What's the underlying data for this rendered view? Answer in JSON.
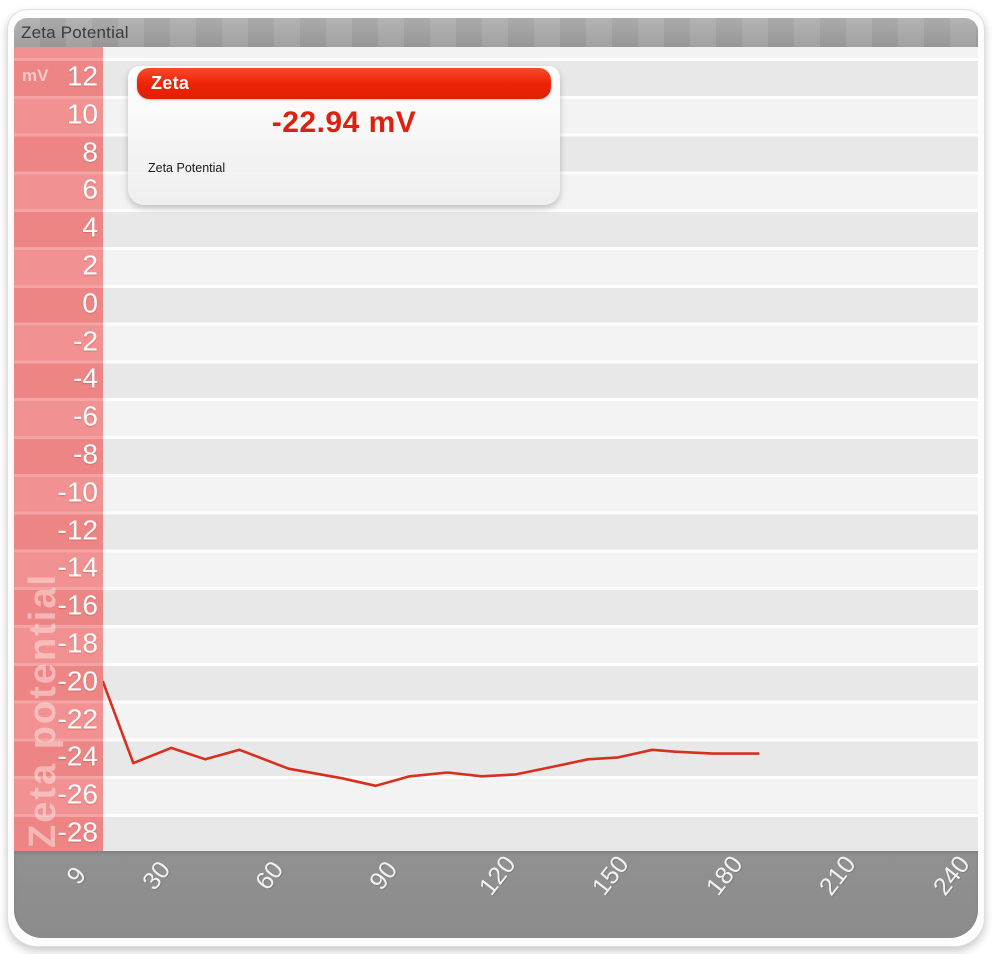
{
  "window": {
    "title": "Zeta Potential"
  },
  "legend": {
    "series_name": "Zeta",
    "value": "-22.94 mV",
    "label": "Zeta Potential"
  },
  "y_axis": {
    "unit": "mV",
    "watermark": "Zeta potential"
  },
  "colors": {
    "titlebar_gray": "#9d9d9d",
    "axis_pink": "#ef8888",
    "x_band_gray": "#8d8d8d",
    "stripe_light": "#f3f3f3",
    "stripe_dark": "#e8e8e8",
    "legend_header_red": "#ee2405",
    "value_text_red": "#dd2110",
    "line_red": "#d7301f"
  },
  "chart_data": {
    "type": "line",
    "title": "Zeta Potential",
    "xlabel": "",
    "ylabel": "Zeta potential (mV)",
    "reported_value": -22.94,
    "reported_unit": "mV",
    "xticks": [
      9,
      30,
      60,
      90,
      120,
      150,
      180,
      210,
      240
    ],
    "yticks": [
      12,
      10,
      8,
      6,
      4,
      2,
      0,
      -2,
      -4,
      -6,
      -8,
      -10,
      -12,
      -14,
      -16,
      -18,
      -20,
      -22,
      -24,
      -26,
      -28
    ],
    "xlim": [
      9,
      240
    ],
    "ylim": [
      -29,
      13.5
    ],
    "grid": "horizontal-bands",
    "legend_position": "top-left",
    "line_color": "#d7301f",
    "series": [
      {
        "name": "Zeta",
        "x": [
          9,
          17,
          27,
          36,
          45,
          58,
          72,
          81,
          90,
          100,
          109,
          118,
          130,
          137,
          145,
          154,
          160,
          170,
          182
        ],
        "y": [
          -20.0,
          -24.3,
          -23.5,
          -24.1,
          -23.6,
          -24.6,
          -25.1,
          -25.5,
          -25.0,
          -24.8,
          -25.0,
          -24.9,
          -24.4,
          -24.1,
          -24.0,
          -23.6,
          -23.7,
          -23.8,
          -23.8
        ]
      }
    ]
  }
}
